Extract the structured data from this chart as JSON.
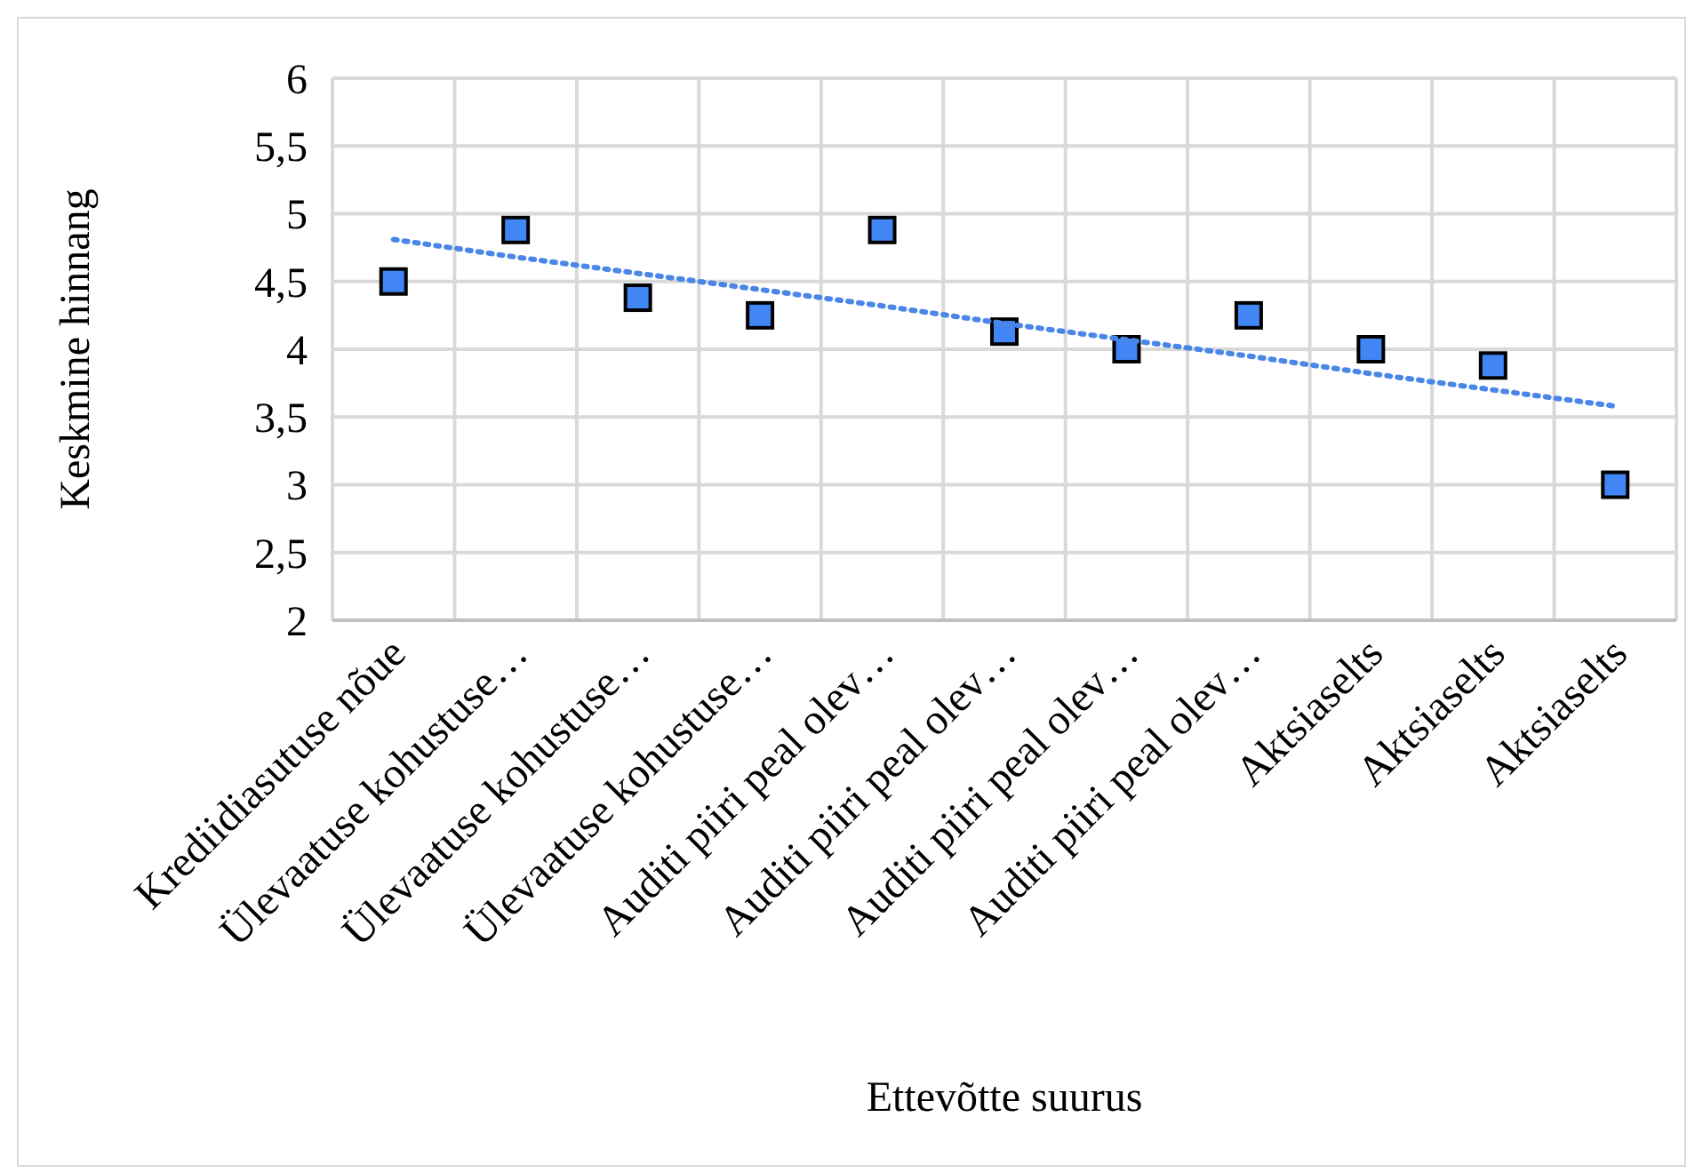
{
  "chart_data": {
    "type": "scatter",
    "xlabel": "Ettevõtte suurus",
    "ylabel": "Keskmine hinnang",
    "categories": [
      "Krediidiasutuse nõue",
      "Ülevaatuse kohustuse…",
      "Ülevaatuse kohustuse…",
      "Ülevaatuse kohustuse…",
      "Auditi piiri peal olev…",
      "Auditi piiri peal olev…",
      "Auditi piiri peal olev…",
      "Auditi piiri peal olev…",
      "Aktsiaselts",
      "Aktsiaselts",
      "Aktsiaselts"
    ],
    "series": [
      {
        "color": "#4285f4",
        "marker": "square",
        "values": [
          4.5,
          4.88,
          4.38,
          4.25,
          4.88,
          4.13,
          4,
          4.25,
          4,
          3.88,
          3
        ]
      },
      {
        "type": "line",
        "color": "#4a86e8",
        "line_style": "dotted",
        "marker": "none",
        "values": [
          4.81,
          4.68,
          4.56,
          4.44,
          4.32,
          4.19,
          4.07,
          3.95,
          3.82,
          3.7,
          3.58
        ]
      }
    ],
    "ylim": [
      2,
      6
    ],
    "yticks": [
      2,
      {
        "value": 2.5,
        "label": "2,5"
      },
      3,
      {
        "value": 3.5,
        "label": "3,5"
      },
      4,
      {
        "value": 4.5,
        "label": "4,5"
      },
      5,
      {
        "value": 5.5,
        "label": "5,5"
      },
      6
    ],
    "grid": true
  }
}
